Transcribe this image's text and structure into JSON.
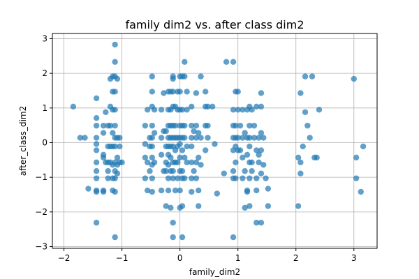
{
  "chart_data": {
    "type": "scatter",
    "title": "family dim2 vs. after class dim2",
    "xlabel": "family_dim2",
    "ylabel": "after_class_dim2",
    "xlim": [
      -2.2,
      3.4
    ],
    "ylim": [
      -3.05,
      3.15
    ],
    "xticks": [
      -2,
      -1,
      0,
      1,
      2,
      3
    ],
    "yticks": [
      -3,
      -2,
      -1,
      0,
      1,
      2,
      3
    ],
    "grid": true,
    "color": "#1f77b4",
    "series": [
      {
        "points": [
          [
            -1.84,
            1.04
          ],
          [
            -1.72,
            0.14
          ],
          [
            -1.64,
            0.14
          ],
          [
            -1.58,
            -1.33
          ],
          [
            -1.44,
            -2.31
          ],
          [
            -1.44,
            1.28
          ],
          [
            -1.44,
            0.71
          ],
          [
            -1.44,
            0.49
          ],
          [
            -1.44,
            0.14
          ],
          [
            -1.44,
            -0.04
          ],
          [
            -1.44,
            -0.22
          ],
          [
            -1.44,
            -0.57
          ],
          [
            -1.44,
            -0.82
          ],
          [
            -1.44,
            -1.03
          ],
          [
            -1.44,
            -1.38
          ],
          [
            -1.44,
            -1.42
          ],
          [
            -1.32,
            0.49
          ],
          [
            -1.32,
            0.28
          ],
          [
            -1.32,
            -0.35
          ],
          [
            -1.32,
            -0.43
          ],
          [
            -1.32,
            -1.38
          ],
          [
            -1.32,
            -1.42
          ],
          [
            -1.28,
            0.88
          ],
          [
            -1.28,
            -0.57
          ],
          [
            -1.24,
            0.49
          ],
          [
            -1.24,
            -0.11
          ],
          [
            -1.24,
            -0.57
          ],
          [
            -1.24,
            -0.82
          ],
          [
            -1.24,
            -1.03
          ],
          [
            -1.2,
            1.84
          ],
          [
            -1.2,
            1.04
          ],
          [
            -1.2,
            0.49
          ],
          [
            -1.2,
            -0.11
          ],
          [
            -1.2,
            -0.57
          ],
          [
            -1.16,
            1.91
          ],
          [
            -1.16,
            1.47
          ],
          [
            -1.16,
            0.95
          ],
          [
            -1.16,
            0.28
          ],
          [
            -1.16,
            -0.11
          ],
          [
            -1.16,
            -0.64
          ],
          [
            -1.16,
            -1.03
          ],
          [
            -1.16,
            -1.38
          ],
          [
            -1.12,
            2.83
          ],
          [
            -1.12,
            2.33
          ],
          [
            -1.12,
            1.91
          ],
          [
            -1.12,
            1.47
          ],
          [
            -1.12,
            0.95
          ],
          [
            -1.12,
            0.49
          ],
          [
            -1.12,
            0.14
          ],
          [
            -1.12,
            -0.11
          ],
          [
            -1.12,
            -0.57
          ],
          [
            -1.12,
            -0.82
          ],
          [
            -1.12,
            -1.03
          ],
          [
            -1.12,
            -1.42
          ],
          [
            -1.12,
            -2.73
          ],
          [
            -1.08,
            1.84
          ],
          [
            -1.08,
            0.14
          ],
          [
            -1.08,
            -0.43
          ],
          [
            -1.08,
            -0.64
          ],
          [
            -1.08,
            -0.89
          ],
          [
            -1.04,
            0.14
          ],
          [
            -1.04,
            -0.11
          ],
          [
            -1.04,
            -0.57
          ],
          [
            -1.0,
            -0.57
          ],
          [
            -0.6,
            0.49
          ],
          [
            -0.6,
            -0.04
          ],
          [
            -0.6,
            -0.43
          ],
          [
            -0.6,
            -1.03
          ],
          [
            -0.56,
            0.95
          ],
          [
            -0.56,
            -0.57
          ],
          [
            -0.56,
            -1.38
          ],
          [
            -0.52,
            0.14
          ],
          [
            -0.52,
            -0.11
          ],
          [
            -0.52,
            -0.82
          ],
          [
            -0.48,
            1.91
          ],
          [
            -0.48,
            1.47
          ],
          [
            -0.48,
            1.04
          ],
          [
            -0.48,
            0.49
          ],
          [
            -0.48,
            0.14
          ],
          [
            -0.48,
            -0.11
          ],
          [
            -0.48,
            -0.43
          ],
          [
            -0.48,
            -0.64
          ],
          [
            -0.48,
            -1.03
          ],
          [
            -0.48,
            -1.42
          ],
          [
            -0.44,
            0.95
          ],
          [
            -0.44,
            0.28
          ],
          [
            -0.44,
            -0.57
          ],
          [
            -0.32,
            0.95
          ],
          [
            -0.32,
            0.14
          ],
          [
            -0.32,
            -0.35
          ],
          [
            -0.32,
            -1.38
          ],
          [
            -0.28,
            1.43
          ],
          [
            -0.28,
            0.33
          ],
          [
            -0.28,
            -0.82
          ],
          [
            -0.24,
            0.33
          ],
          [
            -0.24,
            -0.11
          ],
          [
            -0.24,
            -0.57
          ],
          [
            -0.24,
            -0.82
          ],
          [
            -0.24,
            -1.83
          ],
          [
            -0.2,
            1.47
          ],
          [
            -0.2,
            0.95
          ],
          [
            -0.2,
            0.49
          ],
          [
            -0.2,
            0.14
          ],
          [
            -0.2,
            -0.11
          ],
          [
            -0.2,
            -0.35
          ],
          [
            -0.2,
            -0.64
          ],
          [
            -0.2,
            -1.03
          ],
          [
            -0.2,
            -1.38
          ],
          [
            -0.16,
            1.47
          ],
          [
            -0.16,
            0.95
          ],
          [
            -0.16,
            0.49
          ],
          [
            -0.16,
            0.14
          ],
          [
            -0.16,
            -0.11
          ],
          [
            -0.16,
            -0.43
          ],
          [
            -0.16,
            -0.82
          ],
          [
            -0.16,
            -1.88
          ],
          [
            -0.12,
            1.91
          ],
          [
            -0.12,
            1.84
          ],
          [
            -0.12,
            1.47
          ],
          [
            -0.12,
            1.04
          ],
          [
            -0.12,
            0.49
          ],
          [
            -0.12,
            0.14
          ],
          [
            -0.12,
            -0.11
          ],
          [
            -0.12,
            -0.57
          ],
          [
            -0.12,
            -0.82
          ],
          [
            -0.12,
            -1.03
          ],
          [
            -0.12,
            -2.31
          ],
          [
            -0.12,
            -2.73
          ],
          [
            -0.08,
            1.04
          ],
          [
            -0.08,
            0.49
          ],
          [
            -0.08,
            0.14
          ],
          [
            -0.08,
            -0.22
          ],
          [
            -0.08,
            -0.57
          ],
          [
            -0.08,
            -1.38
          ],
          [
            -0.04,
            1.47
          ],
          [
            -0.04,
            0.95
          ],
          [
            -0.04,
            0.14
          ],
          [
            -0.04,
            -0.11
          ],
          [
            -0.04,
            -0.57
          ],
          [
            -0.04,
            -1.03
          ],
          [
            0.0,
            1.91
          ],
          [
            0.0,
            1.47
          ],
          [
            0.0,
            0.95
          ],
          [
            0.0,
            0.49
          ],
          [
            0.0,
            0.14
          ],
          [
            0.0,
            -0.04
          ],
          [
            0.0,
            -0.43
          ],
          [
            0.0,
            -0.82
          ],
          [
            0.0,
            -1.38
          ],
          [
            0.0,
            -1.88
          ],
          [
            0.04,
            1.91
          ],
          [
            0.04,
            0.95
          ],
          [
            0.04,
            0.49
          ],
          [
            0.04,
            0.14
          ],
          [
            0.04,
            -0.22
          ],
          [
            0.04,
            -0.82
          ],
          [
            0.04,
            -1.03
          ],
          [
            0.04,
            -1.83
          ],
          [
            0.04,
            -2.73
          ],
          [
            0.08,
            2.33
          ],
          [
            0.08,
            1.91
          ],
          [
            0.08,
            0.49
          ],
          [
            0.08,
            0.14
          ],
          [
            0.08,
            -0.43
          ],
          [
            0.08,
            -1.03
          ],
          [
            0.12,
            1.47
          ],
          [
            0.12,
            0.95
          ],
          [
            0.12,
            -0.11
          ],
          [
            0.12,
            -0.57
          ],
          [
            0.2,
            1.04
          ],
          [
            0.2,
            0.49
          ],
          [
            0.2,
            0.14
          ],
          [
            0.2,
            -0.11
          ],
          [
            0.2,
            -0.57
          ],
          [
            0.2,
            -1.03
          ],
          [
            0.2,
            -1.42
          ],
          [
            0.24,
            0.33
          ],
          [
            0.24,
            -0.82
          ],
          [
            0.28,
            1.43
          ],
          [
            0.28,
            0.49
          ],
          [
            0.28,
            0.14
          ],
          [
            0.28,
            -0.57
          ],
          [
            0.28,
            -1.03
          ],
          [
            0.32,
            0.28
          ],
          [
            0.32,
            -0.43
          ],
          [
            0.32,
            -1.38
          ],
          [
            0.32,
            -1.83
          ],
          [
            0.36,
            1.91
          ],
          [
            0.36,
            0.14
          ],
          [
            0.36,
            -0.64
          ],
          [
            0.44,
            1.47
          ],
          [
            0.44,
            1.04
          ],
          [
            0.44,
            0.49
          ],
          [
            0.44,
            -0.22
          ],
          [
            0.48,
            1.04
          ],
          [
            0.48,
            0.49
          ],
          [
            0.48,
            0.14
          ],
          [
            0.56,
            1.04
          ],
          [
            0.6,
            -0.04
          ],
          [
            0.64,
            -1.47
          ],
          [
            0.76,
            -0.89
          ],
          [
            0.8,
            2.33
          ],
          [
            0.92,
            2.33
          ],
          [
            0.92,
            0.95
          ],
          [
            0.92,
            0.49
          ],
          [
            0.92,
            0.14
          ],
          [
            0.92,
            -0.22
          ],
          [
            0.92,
            -0.82
          ],
          [
            0.92,
            -1.03
          ],
          [
            0.92,
            -2.73
          ],
          [
            0.96,
            1.47
          ],
          [
            0.96,
            0.49
          ],
          [
            0.96,
            0.14
          ],
          [
            0.96,
            -0.11
          ],
          [
            0.96,
            -0.57
          ],
          [
            0.96,
            -1.03
          ],
          [
            1.0,
            1.47
          ],
          [
            1.0,
            0.95
          ],
          [
            1.0,
            0.14
          ],
          [
            1.0,
            -0.22
          ],
          [
            1.04,
            0.49
          ],
          [
            1.04,
            -0.22
          ],
          [
            1.08,
            0.95
          ],
          [
            1.08,
            0.14
          ],
          [
            1.08,
            -0.43
          ],
          [
            1.08,
            -1.03
          ],
          [
            1.12,
            0.28
          ],
          [
            1.12,
            -0.82
          ],
          [
            1.12,
            -1.88
          ],
          [
            1.16,
            0.95
          ],
          [
            1.16,
            0.14
          ],
          [
            1.16,
            -0.35
          ],
          [
            1.16,
            -1.38
          ],
          [
            1.16,
            -1.42
          ],
          [
            1.2,
            1.04
          ],
          [
            1.2,
            0.49
          ],
          [
            1.2,
            0.14
          ],
          [
            1.2,
            -0.11
          ],
          [
            1.2,
            -0.57
          ],
          [
            1.2,
            -1.03
          ],
          [
            1.2,
            -1.83
          ],
          [
            1.24,
            0.95
          ],
          [
            1.24,
            -0.57
          ],
          [
            1.24,
            -0.82
          ],
          [
            1.28,
            0.49
          ],
          [
            1.28,
            0.14
          ],
          [
            1.32,
            1.04
          ],
          [
            1.32,
            -0.22
          ],
          [
            1.32,
            -1.03
          ],
          [
            1.32,
            -1.38
          ],
          [
            1.32,
            -2.31
          ],
          [
            1.36,
            0.14
          ],
          [
            1.36,
            -0.35
          ],
          [
            1.36,
            -0.57
          ],
          [
            1.4,
            1.43
          ],
          [
            1.4,
            1.04
          ],
          [
            1.4,
            0.28
          ],
          [
            1.4,
            -0.22
          ],
          [
            1.4,
            -0.89
          ],
          [
            1.4,
            -2.31
          ],
          [
            1.44,
            0.14
          ],
          [
            1.44,
            -0.64
          ],
          [
            1.48,
            -1.03
          ],
          [
            1.52,
            -1.33
          ],
          [
            1.52,
            -1.83
          ],
          [
            2.04,
            -0.43
          ],
          [
            2.04,
            -1.83
          ],
          [
            2.08,
            1.43
          ],
          [
            2.08,
            -0.57
          ],
          [
            2.08,
            -0.89
          ],
          [
            2.12,
            -0.11
          ],
          [
            2.16,
            0.88
          ],
          [
            2.16,
            1.91
          ],
          [
            2.2,
            0.49
          ],
          [
            2.24,
            0.14
          ],
          [
            2.28,
            1.91
          ],
          [
            2.32,
            -0.43
          ],
          [
            2.36,
            -0.43
          ],
          [
            2.4,
            0.95
          ],
          [
            3.0,
            1.84
          ],
          [
            3.04,
            -0.43
          ],
          [
            3.04,
            -1.03
          ],
          [
            3.12,
            -1.42
          ],
          [
            3.16,
            -0.11
          ]
        ]
      }
    ]
  }
}
